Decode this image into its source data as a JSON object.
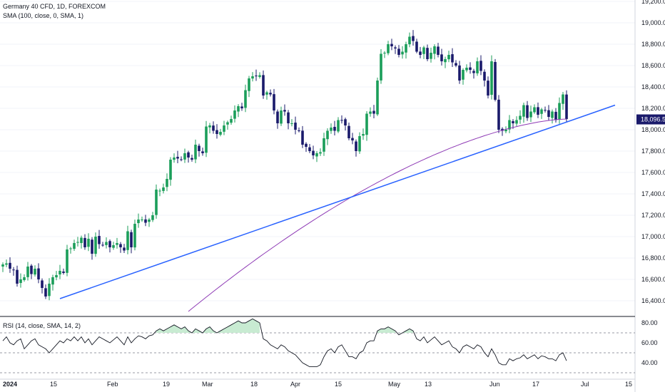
{
  "legend": {
    "symbol": "Germany 40 CFD, 1D, FOREXCOM",
    "sma": "SMA (100, close, 0, SMA, 1)",
    "rsi": "RSI (14, close, SMA, 14, 2)"
  },
  "colors": {
    "up": "#1b9e5a",
    "down": "#1a1a6b",
    "trendline": "#2962ff",
    "sma": "#8e3ab5",
    "rsi": "#131722",
    "rsi_fill": "#c8ebd2",
    "last_price_bg": "#1a1a6b"
  },
  "last_price_label": "18,096.5",
  "chart_data": [
    {
      "type": "candlestick",
      "title": "Germany 40 CFD, 1D, FOREXCOM",
      "ylim": [
        16300,
        19200
      ],
      "y_ticks": [
        "16,400.0",
        "16,600.0",
        "16,800.0",
        "17,000.0",
        "17,200.0",
        "17,400.0",
        "17,600.0",
        "17,800.0",
        "18,000.0",
        "18,200.0",
        "18,400.0",
        "18,600.0",
        "18,800.0",
        "19,000.0",
        "19,200.0"
      ],
      "x_ticks": [
        "2024",
        "15",
        "Feb",
        "19",
        "Mar",
        "18",
        "Apr",
        "15",
        "May",
        "13",
        "Jun",
        "17",
        "Jul",
        "15"
      ],
      "last_price": 18096.5,
      "closes": [
        16740,
        16750,
        16700,
        16690,
        16560,
        16600,
        16620,
        16720,
        16650,
        16700,
        16600,
        16520,
        16440,
        16560,
        16620,
        16640,
        16680,
        16660,
        16880,
        16890,
        16940,
        16950,
        16990,
        16900,
        16980,
        16840,
        17000,
        16930,
        16920,
        16950,
        16900,
        16920,
        16940,
        16900,
        16870,
        17050,
        16900,
        17120,
        17160,
        17160,
        17130,
        17160,
        17200,
        17440,
        17430,
        17460,
        17540,
        17720,
        17740,
        17730,
        17720,
        17780,
        17740,
        17720,
        17860,
        17800,
        17780,
        18030,
        18040,
        17990,
        17960,
        17980,
        18040,
        18070,
        18100,
        18180,
        18220,
        18200,
        18370,
        18480,
        18500,
        18500,
        18510,
        18320,
        18350,
        18330,
        18180,
        18060,
        18180,
        18170,
        18060,
        18060,
        18000,
        17990,
        17860,
        17840,
        17800,
        17760,
        17780,
        17790,
        17920,
        17990,
        18020,
        17990,
        18090,
        18090,
        18040,
        17920,
        17900,
        17800,
        17940,
        17960,
        18150,
        18170,
        18150,
        18460,
        18710,
        18720,
        18800,
        18780,
        18760,
        18700,
        18730,
        18800,
        18870,
        18830,
        18730,
        18700,
        18770,
        18660,
        18720,
        18780,
        18700,
        18640,
        18660,
        18700,
        18630,
        18600,
        18460,
        18560,
        18580,
        18560,
        18530,
        18640,
        18550,
        18460,
        18320,
        18640,
        18280,
        18000,
        17990,
        18000,
        18090,
        18060,
        18090,
        18130,
        18230,
        18110,
        18170,
        18210,
        18140,
        18190,
        18180,
        18120,
        18170,
        18090,
        18250,
        18330,
        18100
      ],
      "sma_endpoints": {
        "start": 16300,
        "end": 18100
      },
      "trendline": {
        "start": 16420,
        "end": 18230
      }
    },
    {
      "type": "line",
      "title": "RSI (14, close, SMA, 14, 2)",
      "ylim": [
        30,
        85
      ],
      "y_ticks": [
        "40.00",
        "60.00",
        "80.00"
      ],
      "levels": [
        30,
        50,
        70
      ],
      "values": [
        62,
        66,
        60,
        58,
        62,
        64,
        54,
        58,
        62,
        64,
        58,
        56,
        54,
        50,
        54,
        58,
        62,
        60,
        64,
        62,
        66,
        62,
        66,
        60,
        64,
        58,
        62,
        66,
        64,
        62,
        60,
        63,
        66,
        62,
        58,
        66,
        60,
        64,
        67,
        66,
        64,
        67,
        68,
        72,
        74,
        72,
        74,
        76,
        78,
        76,
        74,
        76,
        72,
        70,
        74,
        72,
        70,
        74,
        76,
        72,
        70,
        72,
        74,
        76,
        78,
        80,
        82,
        80,
        80,
        82,
        84,
        82,
        80,
        64,
        62,
        58,
        56,
        54,
        58,
        56,
        52,
        50,
        48,
        44,
        40,
        38,
        36,
        36,
        36,
        38,
        46,
        52,
        54,
        50,
        56,
        58,
        52,
        46,
        46,
        44,
        50,
        52,
        60,
        62,
        62,
        72,
        74,
        74,
        76,
        74,
        72,
        68,
        70,
        72,
        74,
        72,
        64,
        62,
        66,
        60,
        63,
        66,
        62,
        58,
        60,
        62,
        56,
        54,
        50,
        56,
        58,
        56,
        54,
        58,
        56,
        50,
        46,
        54,
        48,
        40,
        38,
        38,
        44,
        42,
        44,
        45,
        48,
        44,
        46,
        48,
        44,
        47,
        46,
        44,
        44,
        42,
        48,
        50,
        42
      ]
    }
  ]
}
